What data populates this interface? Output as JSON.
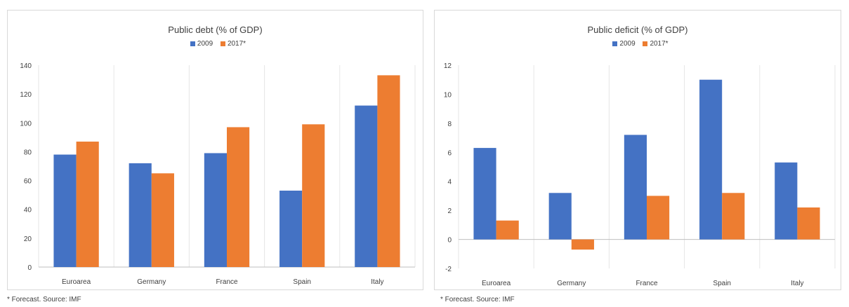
{
  "charts": [
    {
      "title": "Public debt (% of GDP)",
      "footnote": "* Forecast. Source: IMF",
      "chart_data": {
        "type": "bar",
        "title": "Public debt (% of GDP)",
        "categories": [
          "Euroarea",
          "Germany",
          "France",
          "Spain",
          "Italy"
        ],
        "series": [
          {
            "name": "2009",
            "values": [
              78,
              72,
              79,
              53,
              112
            ],
            "color": "#4472c4"
          },
          {
            "name": "2017*",
            "values": [
              87,
              65,
              97,
              99,
              133
            ],
            "color": "#ed7d31"
          }
        ],
        "ylim": [
          0,
          140
        ],
        "yticks": [
          0,
          20,
          40,
          60,
          80,
          100,
          120,
          140
        ],
        "grid": "vertical-category-separators",
        "legend": "top-center"
      }
    },
    {
      "title": "Public deficit (% of GDP)",
      "footnote": "* Forecast. Source: IMF",
      "chart_data": {
        "type": "bar",
        "title": "Public deficit (% of GDP)",
        "categories": [
          "Euroarea",
          "Germany",
          "France",
          "Spain",
          "Italy"
        ],
        "series": [
          {
            "name": "2009",
            "values": [
              6.3,
              3.2,
              7.2,
              11.0,
              5.3
            ],
            "color": "#4472c4"
          },
          {
            "name": "2017*",
            "values": [
              1.3,
              -0.7,
              3.0,
              3.2,
              2.2
            ],
            "color": "#ed7d31"
          }
        ],
        "ylim": [
          -2,
          12
        ],
        "yticks": [
          -2,
          0,
          2,
          4,
          6,
          8,
          10,
          12
        ],
        "grid": "vertical-category-separators",
        "legend": "top-center"
      }
    }
  ]
}
